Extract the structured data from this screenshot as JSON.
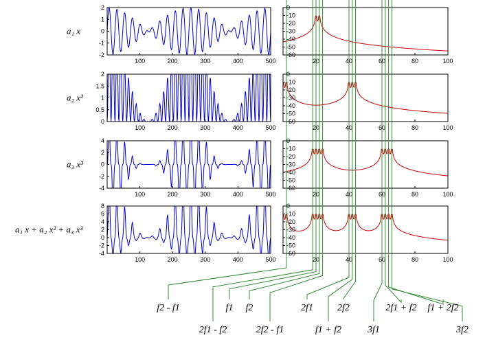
{
  "chart_data": [
    {
      "type": "line",
      "panel": "time",
      "row_label": {
        "a": "a",
        "a_sub": "1",
        "x": "x",
        "x_sup": ""
      },
      "signal": {
        "amplitudes": [
          1,
          0,
          0
        ],
        "f1": 20,
        "f2": 22,
        "n": 500
      },
      "xlim": [
        0,
        500
      ],
      "ylim": [
        -2,
        2
      ],
      "xticks": [
        "100",
        "200",
        "300",
        "400",
        "500"
      ],
      "yticks": [
        "2",
        "1",
        "0",
        "-1",
        "-2"
      ],
      "color": "#0000cc"
    },
    {
      "type": "line",
      "panel": "spectrum",
      "xlim": [
        0,
        100
      ],
      "ylim": [
        -60,
        0
      ],
      "xticks": [
        "20",
        "40",
        "60",
        "80",
        "100"
      ],
      "yticks": [
        "0",
        "-10",
        "-20",
        "-30",
        "-40",
        "-50",
        "-60"
      ],
      "peaks": [
        20,
        22
      ],
      "color": "#cc0000"
    },
    {
      "type": "line",
      "panel": "time",
      "row_label": {
        "a": "a",
        "a_sub": "2",
        "x": "x",
        "x_sup": "2"
      },
      "signal": {
        "amplitudes": [
          0,
          1,
          0
        ],
        "f1": 20,
        "f2": 22,
        "n": 500
      },
      "xlim": [
        0,
        500
      ],
      "ylim": [
        0,
        2
      ],
      "xticks": [
        "100",
        "200",
        "300",
        "400",
        "500"
      ],
      "yticks": [
        "2",
        "1.5",
        "1",
        "0.5",
        "0"
      ],
      "color": "#0000cc"
    },
    {
      "type": "line",
      "panel": "spectrum",
      "xlim": [
        0,
        100
      ],
      "ylim": [
        -60,
        0
      ],
      "xticks": [
        "20",
        "40",
        "60",
        "80",
        "100"
      ],
      "yticks": [
        "0",
        "-10",
        "-20",
        "-30",
        "-40",
        "-50",
        "-60"
      ],
      "peaks": [
        0,
        2,
        40,
        42,
        44
      ],
      "color": "#cc0000"
    },
    {
      "type": "line",
      "panel": "time",
      "row_label": {
        "a": "a",
        "a_sub": "3",
        "x": "x",
        "x_sup": "3"
      },
      "signal": {
        "amplitudes": [
          0,
          0,
          1
        ],
        "f1": 20,
        "f2": 22,
        "n": 500
      },
      "xlim": [
        0,
        500
      ],
      "ylim": [
        -4,
        4
      ],
      "xticks": [
        "100",
        "200",
        "300",
        "400",
        "500"
      ],
      "yticks": [
        "4",
        "2",
        "0",
        "-2",
        "-4"
      ],
      "color": "#0000cc"
    },
    {
      "type": "line",
      "panel": "spectrum",
      "xlim": [
        0,
        100
      ],
      "ylim": [
        -60,
        0
      ],
      "xticks": [
        "20",
        "40",
        "60",
        "80",
        "100"
      ],
      "yticks": [
        "0",
        "-10",
        "-20",
        "-30",
        "-40",
        "-50",
        "-60"
      ],
      "peaks": [
        18,
        20,
        22,
        24,
        60,
        62,
        64,
        66
      ],
      "color": "#cc0000"
    },
    {
      "type": "line",
      "panel": "time",
      "row_label": {
        "a": "a",
        "a_sub": "1",
        "x": "x",
        "x_sup": "",
        "sum": true
      },
      "signal": {
        "amplitudes": [
          1,
          1,
          1
        ],
        "f1": 20,
        "f2": 22,
        "n": 500
      },
      "xlim": [
        0,
        500
      ],
      "ylim": [
        -4,
        8
      ],
      "xticks": [
        "100",
        "200",
        "300",
        "400",
        "500"
      ],
      "yticks": [
        "8",
        "6",
        "4",
        "2",
        "0",
        "-2",
        "-4"
      ],
      "color": "#0000cc"
    },
    {
      "type": "line",
      "panel": "spectrum",
      "xlim": [
        0,
        100
      ],
      "ylim": [
        -60,
        0
      ],
      "xticks": [
        "20",
        "40",
        "60",
        "80",
        "100"
      ],
      "yticks": [
        "0",
        "-10",
        "-20",
        "-30",
        "-40",
        "-50",
        "-60"
      ],
      "peaks": [
        0,
        2,
        18,
        20,
        22,
        24,
        40,
        42,
        44,
        60,
        62,
        64,
        66
      ],
      "color": "#cc0000"
    }
  ],
  "frequency_labels": [
    {
      "id": "f2-f1",
      "freq": 2,
      "row": 1,
      "text": "f2 - f1"
    },
    {
      "id": "2f1-f2",
      "freq": 18,
      "row": 2,
      "text": "2f1 - f2"
    },
    {
      "id": "f1",
      "freq": 20,
      "row": 1,
      "text": "f1"
    },
    {
      "id": "f2",
      "freq": 22,
      "row": 1,
      "text": "f2"
    },
    {
      "id": "2f2-f1",
      "freq": 24,
      "row": 2,
      "text": "2f2 - f1"
    },
    {
      "id": "2f1",
      "freq": 40,
      "row": 1,
      "text": "2f1"
    },
    {
      "id": "f1+f2",
      "freq": 42,
      "row": 2,
      "text": "f1 + f2"
    },
    {
      "id": "2f2",
      "freq": 44,
      "row": 1,
      "text": "2f2"
    },
    {
      "id": "3f1",
      "freq": 60,
      "row": 2,
      "text": "3f1"
    },
    {
      "id": "2f1+f2",
      "freq": 62,
      "row": 1,
      "text": "2f1 + f2"
    },
    {
      "id": "f1+2f2",
      "freq": 64,
      "row": 1,
      "text": "f1 + 2f2"
    },
    {
      "id": "3f2",
      "freq": 66,
      "row": 2,
      "text": "3f2"
    }
  ],
  "style": {
    "guide_color": "#2e8b2e",
    "axis_color": "#000000"
  }
}
